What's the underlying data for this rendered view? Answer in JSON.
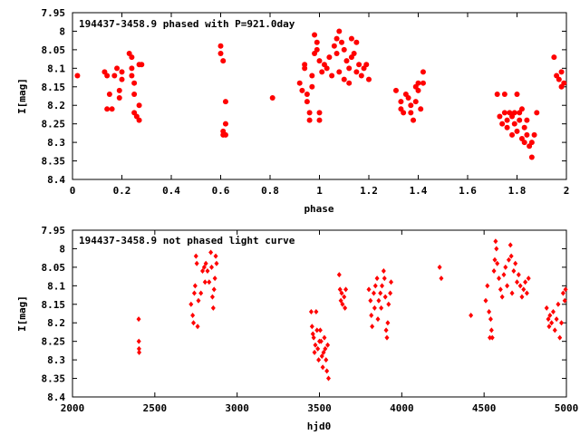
{
  "chart_data": [
    {
      "type": "scatter",
      "title": "194437-3458.9 phased with P=921.0day",
      "xlabel": "phase",
      "ylabel": "I[mag]",
      "xlim": [
        0,
        2
      ],
      "ylim": [
        7.95,
        8.4
      ],
      "y_inverted": true,
      "grid": false,
      "legend": "none",
      "marker": "filled circle",
      "color": "#ff0000",
      "x_ticks": [
        "0",
        "0.2",
        "0.4",
        "0.6",
        "0.8",
        "1",
        "1.2",
        "1.4",
        "1.6",
        "1.8",
        "2"
      ],
      "x_tick_values": [
        0,
        0.2,
        0.4,
        0.6,
        0.8,
        1,
        1.2,
        1.4,
        1.6,
        1.8,
        2
      ],
      "y_ticks": [
        "7.95",
        "8",
        "8.05",
        "8.1",
        "8.15",
        "8.2",
        "8.25",
        "8.3",
        "8.35",
        "8.4"
      ],
      "y_tick_values": [
        7.95,
        8,
        8.05,
        8.1,
        8.15,
        8.2,
        8.25,
        8.3,
        8.35,
        8.4
      ],
      "points": [
        [
          0.02,
          8.12
        ],
        [
          0.13,
          8.11
        ],
        [
          0.14,
          8.12
        ],
        [
          0.15,
          8.17
        ],
        [
          0.14,
          8.21
        ],
        [
          0.16,
          8.21
        ],
        [
          0.17,
          8.12
        ],
        [
          0.18,
          8.1
        ],
        [
          0.19,
          8.16
        ],
        [
          0.19,
          8.18
        ],
        [
          0.2,
          8.13
        ],
        [
          0.2,
          8.11
        ],
        [
          0.23,
          8.06
        ],
        [
          0.24,
          8.07
        ],
        [
          0.24,
          8.1
        ],
        [
          0.24,
          8.12
        ],
        [
          0.25,
          8.14
        ],
        [
          0.25,
          8.17
        ],
        [
          0.25,
          8.22
        ],
        [
          0.26,
          8.23
        ],
        [
          0.27,
          8.24
        ],
        [
          0.27,
          8.2
        ],
        [
          0.27,
          8.09
        ],
        [
          0.28,
          8.09
        ],
        [
          0.6,
          8.04
        ],
        [
          0.6,
          8.06
        ],
        [
          0.61,
          8.08
        ],
        [
          0.61,
          8.27
        ],
        [
          0.61,
          8.28
        ],
        [
          0.62,
          8.25
        ],
        [
          0.62,
          8.28
        ],
        [
          0.62,
          8.19
        ],
        [
          0.81,
          8.18
        ],
        [
          0.92,
          8.14
        ],
        [
          0.93,
          8.16
        ],
        [
          0.94,
          8.1
        ],
        [
          0.94,
          8.09
        ],
        [
          0.95,
          8.17
        ],
        [
          0.95,
          8.19
        ],
        [
          0.96,
          8.24
        ],
        [
          0.96,
          8.22
        ],
        [
          0.97,
          8.12
        ],
        [
          0.97,
          8.15
        ],
        [
          0.98,
          8.06
        ],
        [
          0.98,
          8.01
        ],
        [
          0.99,
          8.03
        ],
        [
          0.99,
          8.05
        ],
        [
          1.0,
          8.08
        ],
        [
          1.0,
          8.22
        ],
        [
          1.0,
          8.24
        ],
        [
          1.01,
          8.11
        ],
        [
          1.02,
          8.09
        ],
        [
          1.03,
          8.1
        ],
        [
          1.04,
          8.07
        ],
        [
          1.05,
          8.12
        ],
        [
          1.06,
          8.04
        ],
        [
          1.07,
          8.02
        ],
        [
          1.07,
          8.06
        ],
        [
          1.08,
          8.0
        ],
        [
          1.08,
          8.11
        ],
        [
          1.09,
          8.03
        ],
        [
          1.1,
          8.05
        ],
        [
          1.1,
          8.13
        ],
        [
          1.11,
          8.08
        ],
        [
          1.12,
          8.1
        ],
        [
          1.12,
          8.14
        ],
        [
          1.13,
          8.07
        ],
        [
          1.13,
          8.02
        ],
        [
          1.14,
          8.06
        ],
        [
          1.15,
          8.11
        ],
        [
          1.15,
          8.03
        ],
        [
          1.16,
          8.09
        ],
        [
          1.17,
          8.12
        ],
        [
          1.18,
          8.1
        ],
        [
          1.19,
          8.09
        ],
        [
          1.2,
          8.13
        ],
        [
          1.31,
          8.16
        ],
        [
          1.33,
          8.19
        ],
        [
          1.33,
          8.21
        ],
        [
          1.34,
          8.22
        ],
        [
          1.35,
          8.17
        ],
        [
          1.36,
          8.18
        ],
        [
          1.37,
          8.2
        ],
        [
          1.37,
          8.22
        ],
        [
          1.38,
          8.24
        ],
        [
          1.39,
          8.15
        ],
        [
          1.39,
          8.19
        ],
        [
          1.4,
          8.14
        ],
        [
          1.4,
          8.16
        ],
        [
          1.41,
          8.21
        ],
        [
          1.42,
          8.11
        ],
        [
          1.42,
          8.14
        ],
        [
          1.72,
          8.17
        ],
        [
          1.73,
          8.23
        ],
        [
          1.74,
          8.25
        ],
        [
          1.75,
          8.22
        ],
        [
          1.75,
          8.17
        ],
        [
          1.76,
          8.24
        ],
        [
          1.76,
          8.26
        ],
        [
          1.77,
          8.22
        ],
        [
          1.78,
          8.23
        ],
        [
          1.78,
          8.28
        ],
        [
          1.79,
          8.22
        ],
        [
          1.79,
          8.25
        ],
        [
          1.8,
          8.17
        ],
        [
          1.8,
          8.27
        ],
        [
          1.81,
          8.22
        ],
        [
          1.81,
          8.24
        ],
        [
          1.82,
          8.21
        ],
        [
          1.82,
          8.29
        ],
        [
          1.83,
          8.3
        ],
        [
          1.83,
          8.26
        ],
        [
          1.84,
          8.24
        ],
        [
          1.84,
          8.28
        ],
        [
          1.85,
          8.31
        ],
        [
          1.86,
          8.34
        ],
        [
          1.86,
          8.3
        ],
        [
          1.87,
          8.28
        ],
        [
          1.88,
          8.22
        ],
        [
          1.95,
          8.07
        ],
        [
          1.96,
          8.12
        ],
        [
          1.97,
          8.13
        ],
        [
          1.98,
          8.11
        ],
        [
          1.98,
          8.15
        ],
        [
          1.99,
          8.14
        ]
      ]
    },
    {
      "type": "scatter",
      "title": "194437-3458.9 not phased light curve",
      "xlabel": "hjd0",
      "ylabel": "I[mag]",
      "xlim": [
        2000,
        5000
      ],
      "ylim": [
        7.95,
        8.4
      ],
      "y_inverted": true,
      "grid": false,
      "legend": "none",
      "marker": "filled diamond",
      "color": "#ff0000",
      "x_ticks": [
        "2000",
        "2500",
        "3000",
        "3500",
        "4000",
        "4500",
        "5000"
      ],
      "x_tick_values": [
        2000,
        2500,
        3000,
        3500,
        4000,
        4500,
        5000
      ],
      "y_ticks": [
        "7.95",
        "8",
        "8.05",
        "8.1",
        "8.15",
        "8.2",
        "8.25",
        "8.3",
        "8.35",
        "8.4"
      ],
      "y_tick_values": [
        7.95,
        8,
        8.05,
        8.1,
        8.15,
        8.2,
        8.25,
        8.3,
        8.35,
        8.4
      ],
      "points": [
        [
          2402,
          8.19
        ],
        [
          2403,
          8.25
        ],
        [
          2404,
          8.27
        ],
        [
          2405,
          8.28
        ],
        [
          2720,
          8.15
        ],
        [
          2730,
          8.18
        ],
        [
          2735,
          8.2
        ],
        [
          2740,
          8.12
        ],
        [
          2745,
          8.1
        ],
        [
          2750,
          8.02
        ],
        [
          2755,
          8.04
        ],
        [
          2760,
          8.21
        ],
        [
          2765,
          8.14
        ],
        [
          2780,
          8.12
        ],
        [
          2790,
          8.06
        ],
        [
          2800,
          8.05
        ],
        [
          2805,
          8.09
        ],
        [
          2810,
          8.04
        ],
        [
          2820,
          8.06
        ],
        [
          2830,
          8.09
        ],
        [
          2840,
          8.01
        ],
        [
          2845,
          8.05
        ],
        [
          2850,
          8.13
        ],
        [
          2855,
          8.16
        ],
        [
          2860,
          8.11
        ],
        [
          2865,
          8.08
        ],
        [
          2870,
          8.02
        ],
        [
          2875,
          8.04
        ],
        [
          3450,
          8.17
        ],
        [
          3455,
          8.21
        ],
        [
          3460,
          8.23
        ],
        [
          3465,
          8.24
        ],
        [
          3470,
          8.28
        ],
        [
          3475,
          8.26
        ],
        [
          3480,
          8.17
        ],
        [
          3485,
          8.22
        ],
        [
          3490,
          8.27
        ],
        [
          3495,
          8.3
        ],
        [
          3500,
          8.25
        ],
        [
          3505,
          8.22
        ],
        [
          3510,
          8.25
        ],
        [
          3515,
          8.29
        ],
        [
          3520,
          8.32
        ],
        [
          3525,
          8.28
        ],
        [
          3530,
          8.24
        ],
        [
          3535,
          8.27
        ],
        [
          3540,
          8.3
        ],
        [
          3545,
          8.33
        ],
        [
          3550,
          8.26
        ],
        [
          3555,
          8.35
        ],
        [
          3620,
          8.07
        ],
        [
          3625,
          8.11
        ],
        [
          3630,
          8.14
        ],
        [
          3635,
          8.12
        ],
        [
          3640,
          8.15
        ],
        [
          3650,
          8.13
        ],
        [
          3655,
          8.16
        ],
        [
          3660,
          8.11
        ],
        [
          3800,
          8.11
        ],
        [
          3810,
          8.14
        ],
        [
          3815,
          8.18
        ],
        [
          3820,
          8.21
        ],
        [
          3830,
          8.12
        ],
        [
          3835,
          8.16
        ],
        [
          3840,
          8.1
        ],
        [
          3850,
          8.08
        ],
        [
          3855,
          8.19
        ],
        [
          3860,
          8.14
        ],
        [
          3870,
          8.12
        ],
        [
          3875,
          8.16
        ],
        [
          3880,
          8.1
        ],
        [
          3890,
          8.06
        ],
        [
          3895,
          8.08
        ],
        [
          3900,
          8.13
        ],
        [
          3905,
          8.22
        ],
        [
          3910,
          8.24
        ],
        [
          3915,
          8.2
        ],
        [
          3920,
          8.15
        ],
        [
          3930,
          8.12
        ],
        [
          3935,
          8.09
        ],
        [
          4230,
          8.05
        ],
        [
          4240,
          8.08
        ],
        [
          4420,
          8.18
        ],
        [
          4510,
          8.14
        ],
        [
          4520,
          8.1
        ],
        [
          4530,
          8.17
        ],
        [
          4535,
          8.24
        ],
        [
          4540,
          8.19
        ],
        [
          4545,
          8.22
        ],
        [
          4550,
          8.24
        ],
        [
          4560,
          8.06
        ],
        [
          4565,
          8.03
        ],
        [
          4570,
          7.98
        ],
        [
          4575,
          8.0
        ],
        [
          4580,
          8.04
        ],
        [
          4590,
          8.08
        ],
        [
          4600,
          8.11
        ],
        [
          4610,
          8.13
        ],
        [
          4620,
          8.07
        ],
        [
          4630,
          8.05
        ],
        [
          4640,
          8.1
        ],
        [
          4650,
          8.03
        ],
        [
          4660,
          7.99
        ],
        [
          4665,
          8.02
        ],
        [
          4670,
          8.12
        ],
        [
          4680,
          8.06
        ],
        [
          4690,
          8.04
        ],
        [
          4700,
          8.09
        ],
        [
          4710,
          8.07
        ],
        [
          4720,
          8.1
        ],
        [
          4730,
          8.13
        ],
        [
          4740,
          8.11
        ],
        [
          4750,
          8.09
        ],
        [
          4760,
          8.12
        ],
        [
          4770,
          8.08
        ],
        [
          4880,
          8.16
        ],
        [
          4890,
          8.19
        ],
        [
          4895,
          8.21
        ],
        [
          4900,
          8.18
        ],
        [
          4910,
          8.2
        ],
        [
          4920,
          8.17
        ],
        [
          4930,
          8.22
        ],
        [
          4940,
          8.19
        ],
        [
          4950,
          8.15
        ],
        [
          4960,
          8.24
        ],
        [
          4970,
          8.2
        ],
        [
          4980,
          8.12
        ],
        [
          4990,
          8.14
        ],
        [
          4995,
          8.11
        ]
      ]
    }
  ]
}
